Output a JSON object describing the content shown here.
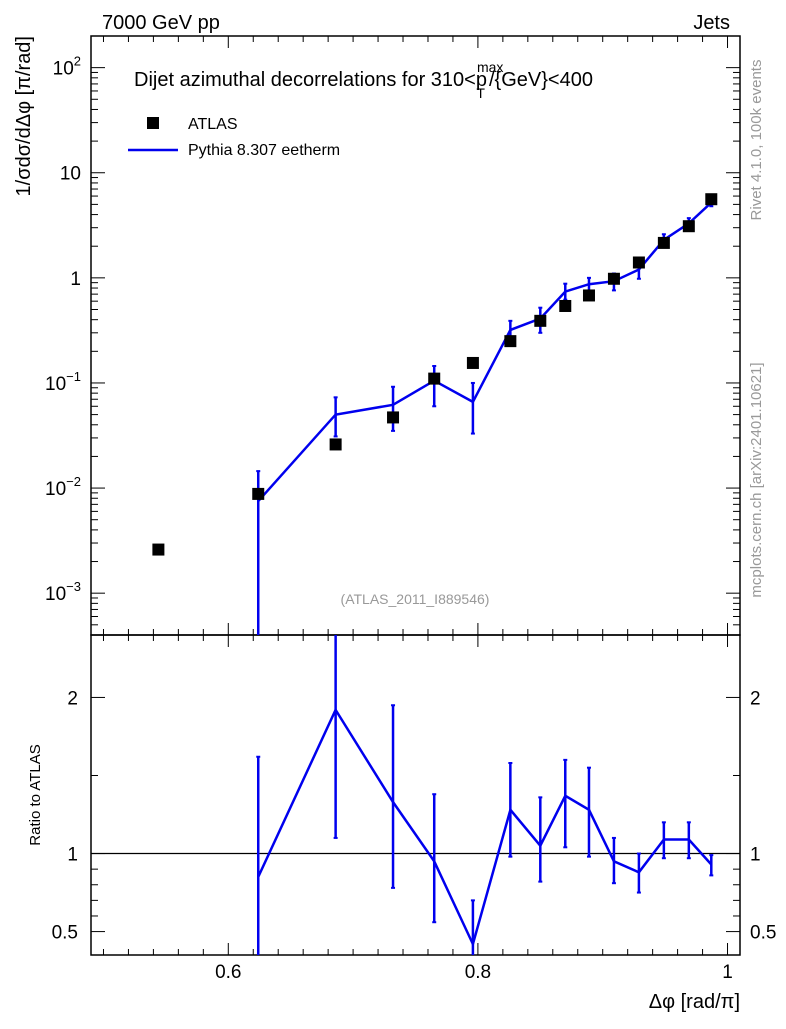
{
  "header": {
    "left": "7000 GeV pp",
    "right": "Jets"
  },
  "side": {
    "rivet": "Rivet 4.1.0,  100k events",
    "mcplots": "mcplots.cern.ch [arXiv:2401.10621]"
  },
  "chart_data": {
    "type": "scatter",
    "title_main": "Dijet azimuthal decorrelations for 310<p",
    "title_sup": "max",
    "title_sub": "T",
    "title_end": "/{GeV}<400",
    "analysis_label": "(ATLAS_2011_I889546)",
    "ylabel": "1/σdσ/dΔφ [π/rad]",
    "xlabel": "Δφ [rad/π]",
    "ratio_ylabel": "Ratio to ATLAS",
    "xlim": [
      0.49,
      1.01
    ],
    "ylim_log": [
      0.0004,
      200
    ],
    "ratio_ylim": [
      0.35,
      2.4
    ],
    "x_ticks": [
      {
        "value": 0.6,
        "label": "0.6"
      },
      {
        "value": 0.8,
        "label": "0.8"
      },
      {
        "value": 1.0,
        "label": "1"
      }
    ],
    "y_ticks": [
      {
        "value": 0.001,
        "base": "10",
        "exp": "−3"
      },
      {
        "value": 0.01,
        "base": "10",
        "exp": "−2"
      },
      {
        "value": 0.1,
        "base": "10",
        "exp": "−1"
      },
      {
        "value": 1,
        "base": "1",
        "exp": ""
      },
      {
        "value": 10,
        "base": "10",
        "exp": ""
      },
      {
        "value": 100,
        "base": "10",
        "exp": "2"
      }
    ],
    "ratio_ticks": [
      {
        "value": 0.5,
        "label": "0.5"
      },
      {
        "value": 1,
        "label": "1"
      },
      {
        "value": 2,
        "label": "2"
      }
    ],
    "legend": {
      "data": "ATLAS",
      "mc": "Pythia 8.307 eetherm"
    },
    "colors": {
      "data": "#000000",
      "mc": "#0000ee",
      "muted": "#999999"
    },
    "data": {
      "name": "ATLAS",
      "x": [
        0.544,
        0.624,
        0.686,
        0.732,
        0.765,
        0.796,
        0.826,
        0.85,
        0.87,
        0.889,
        0.909,
        0.929,
        0.949,
        0.969,
        0.987
      ],
      "y": [
        0.0026,
        0.0088,
        0.026,
        0.047,
        0.11,
        0.155,
        0.25,
        0.39,
        0.54,
        0.68,
        0.98,
        1.4,
        2.15,
        3.1,
        5.6
      ]
    },
    "mc": {
      "name": "Pythia 8.307 eetherm",
      "x": [
        0.624,
        0.686,
        0.732,
        0.765,
        0.796,
        0.826,
        0.85,
        0.87,
        0.889,
        0.909,
        0.929,
        0.949,
        0.969,
        0.987
      ],
      "y": [
        0.0075,
        0.05,
        0.062,
        0.105,
        0.066,
        0.32,
        0.41,
        0.74,
        0.87,
        0.93,
        1.2,
        2.3,
        3.3,
        5.2
      ],
      "err_lo": [
        0.0001,
        0.031,
        0.035,
        0.06,
        0.033,
        0.26,
        0.3,
        0.62,
        0.74,
        0.76,
        0.98,
        2.05,
        2.9,
        4.8
      ],
      "err_hi": [
        0.0145,
        0.073,
        0.092,
        0.145,
        0.1,
        0.39,
        0.52,
        0.88,
        1.0,
        1.1,
        1.43,
        2.6,
        3.7,
        5.6
      ]
    },
    "ratio": {
      "x": [
        0.624,
        0.686,
        0.732,
        0.765,
        0.796,
        0.826,
        0.85,
        0.87,
        0.889,
        0.909,
        0.929,
        0.949,
        0.969,
        0.987
      ],
      "y": [
        0.85,
        1.92,
        1.33,
        0.95,
        0.42,
        1.28,
        1.05,
        1.37,
        1.28,
        0.95,
        0.88,
        1.09,
        1.09,
        0.93
      ],
      "err_lo": [
        0.35,
        1.1,
        0.78,
        0.56,
        0.33,
        0.98,
        0.82,
        1.04,
        0.98,
        0.81,
        0.75,
        0.97,
        0.97,
        0.86
      ],
      "err_hi": [
        1.62,
        2.4,
        1.95,
        1.38,
        0.7,
        1.58,
        1.36,
        1.6,
        1.55,
        1.1,
        1.0,
        1.2,
        1.2,
        0.99
      ]
    }
  }
}
